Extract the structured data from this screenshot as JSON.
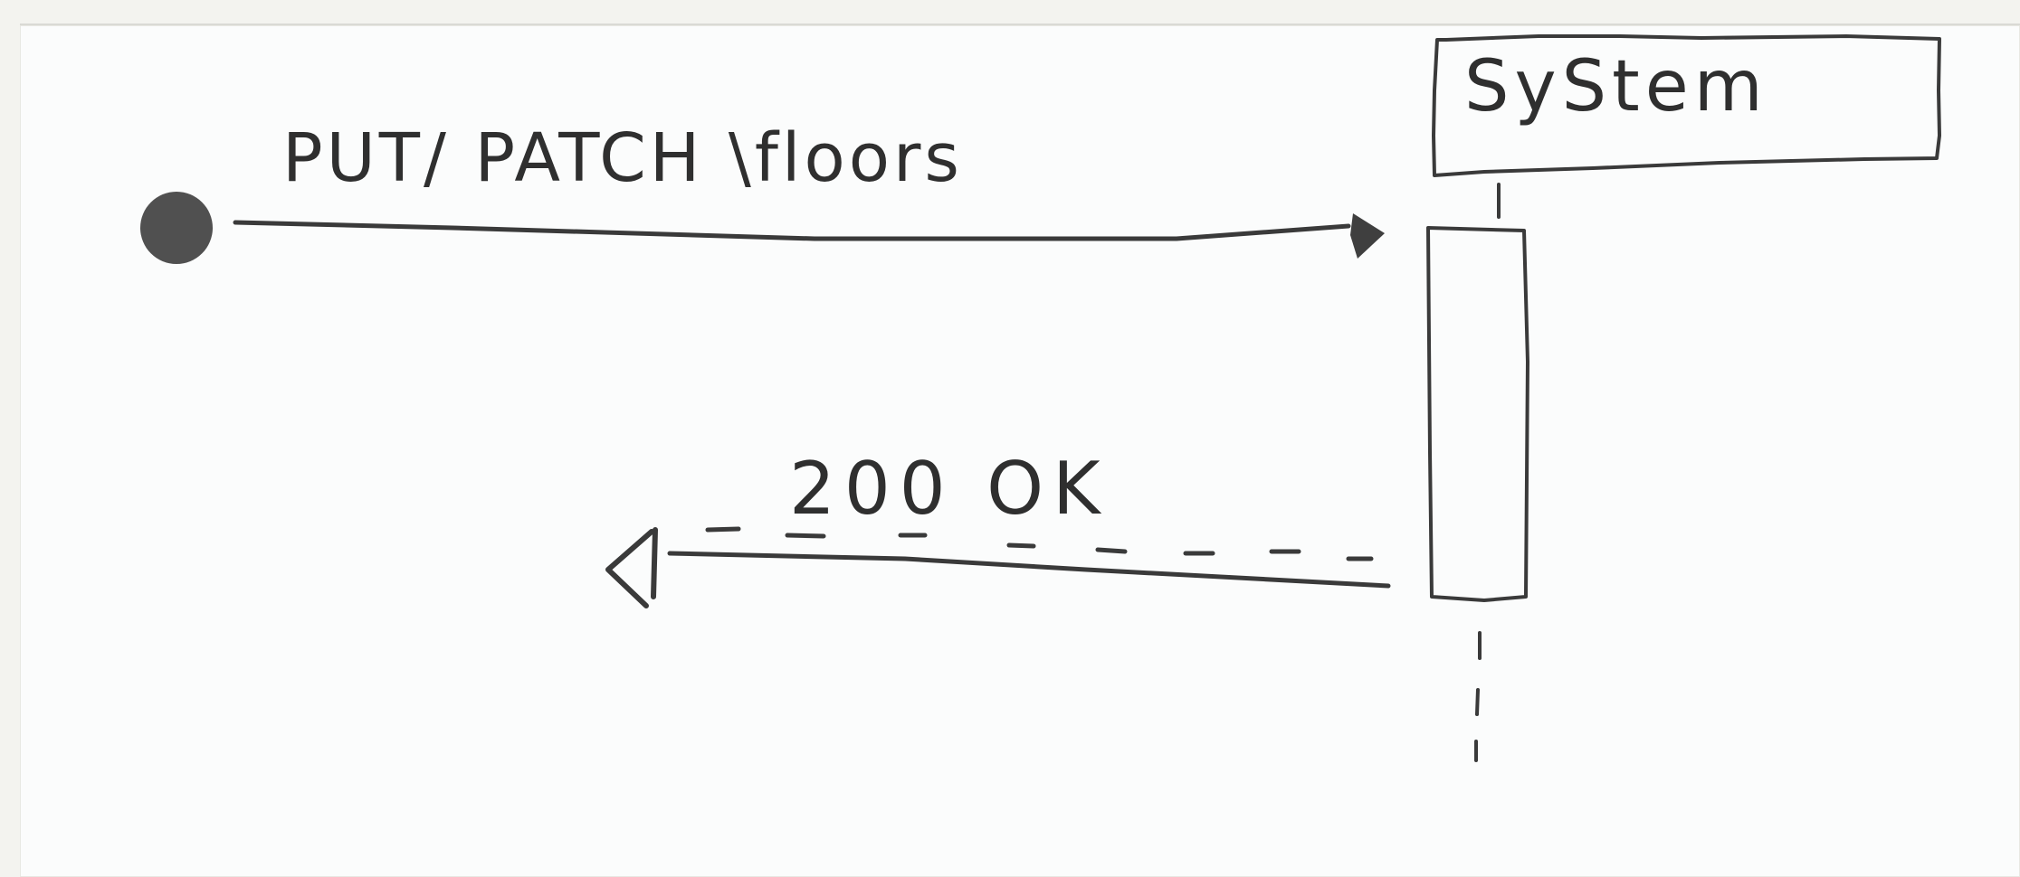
{
  "diagram": {
    "type": "sequence-diagram",
    "participant": {
      "label": "SyStem"
    },
    "messages": [
      {
        "kind": "found-message",
        "label": "PUT/ PATCH \\floors",
        "direction": "to-participant"
      },
      {
        "kind": "reply",
        "label": "200 OK",
        "direction": "from-participant",
        "line_style": "dashed"
      }
    ]
  }
}
